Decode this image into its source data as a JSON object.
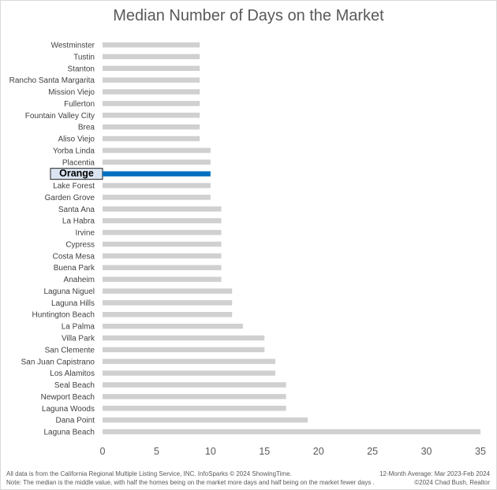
{
  "chart_data": {
    "type": "bar",
    "orientation": "horizontal",
    "title": "Median Number of Days on the Market",
    "categories": [
      "Westminster",
      "Tustin",
      "Stanton",
      "Rancho Santa Margarita",
      "Mission Viejo",
      "Fullerton",
      "Fountain Valley City",
      "Brea",
      "Aliso Viejo",
      "Yorba Linda",
      "Placentia",
      "Orange",
      "Lake Forest",
      "Garden Grove",
      "Santa Ana",
      "La Habra",
      "Irvine",
      "Cypress",
      "Costa Mesa",
      "Buena Park",
      "Anaheim",
      "Laguna Niguel",
      "Laguna Hills",
      "Huntington Beach",
      "La Palma",
      "Villa Park",
      "San Clemente",
      "San Juan Capistrano",
      "Los Alamitos",
      "Seal Beach",
      "Newport Beach",
      "Laguna Woods",
      "Dana Point",
      "Laguna Beach"
    ],
    "values": [
      9,
      9,
      9,
      9,
      9,
      9,
      9,
      9,
      9,
      10,
      10,
      10,
      10,
      10,
      11,
      11,
      11,
      11,
      11,
      11,
      11,
      12,
      12,
      12,
      13,
      15,
      15,
      16,
      16,
      17,
      17,
      17,
      19,
      35
    ],
    "highlight": "Orange",
    "xlim": [
      0,
      35
    ],
    "xticks": [
      "0",
      "5",
      "10",
      "15",
      "20",
      "25",
      "30",
      "35"
    ],
    "grid": false,
    "legend": "none",
    "colors": {
      "bar": "#d0d0d0",
      "highlight": "#0070c0",
      "highlight_label_bg": "#dce6f2"
    }
  },
  "footer": {
    "source": "All data is from the California Regional Multiple Listing Service, INC. InfoSparks © 2024 ShowingTime.",
    "note": "Note: The median is the middle value, with half the homes being on the market more days and half being on the market fewer days .",
    "period": "12-Month Average: Mar 2023-Feb 2024",
    "credit": "©2024 Chad Bush, Realtor"
  }
}
